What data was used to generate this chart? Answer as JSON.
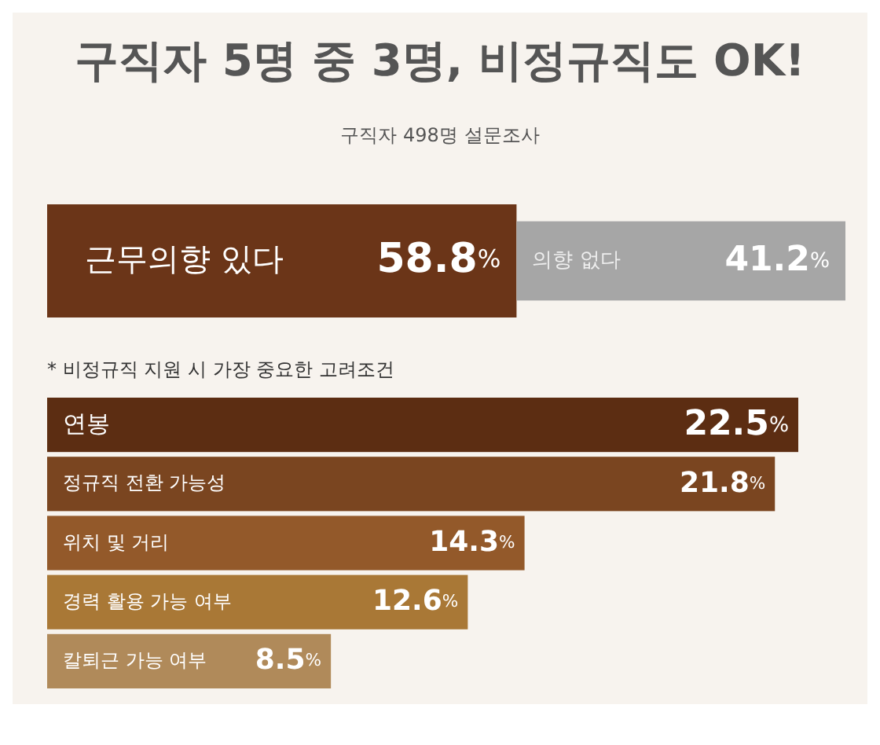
{
  "chart_data": [
    {
      "type": "bar",
      "title": "구직자 5명 중 3명, 비정규직도 OK!",
      "subtitle": "구직자 498명 설문조사",
      "orientation": "horizontal",
      "stacked": true,
      "categories": [
        null
      ],
      "xlim": [
        0,
        100
      ],
      "tick_labels": false,
      "series": [
        {
          "name": "근무의향 있다",
          "color": "#6b3518",
          "values": [
            58.8
          ],
          "value_labels": [
            "58.8%"
          ]
        },
        {
          "name": "의향 없다",
          "color": "#a6a6a6",
          "values": [
            41.2
          ],
          "value_labels": [
            "41.2%"
          ]
        }
      ]
    },
    {
      "type": "bar",
      "title": "* 비정규직 지원 시 가장 중요한 고려조건",
      "orientation": "horizontal",
      "categories": [
        "연봉",
        "정규직 전환 가능성",
        "위치 및 거리",
        "경력 활용 가능 여부",
        "칼퇴근 가능 여부"
      ],
      "values": [
        22.5,
        21.8,
        14.3,
        12.6,
        8.5
      ],
      "value_labels": [
        "22.5%",
        "21.8%",
        "14.3%",
        "12.6%",
        "8.5%"
      ],
      "colors": [
        "#5c2d12",
        "#7a4520",
        "#93592a",
        "#a97836",
        "#b08a5a"
      ],
      "xlim": [
        0,
        22.5
      ],
      "tick_labels": false
    }
  ]
}
